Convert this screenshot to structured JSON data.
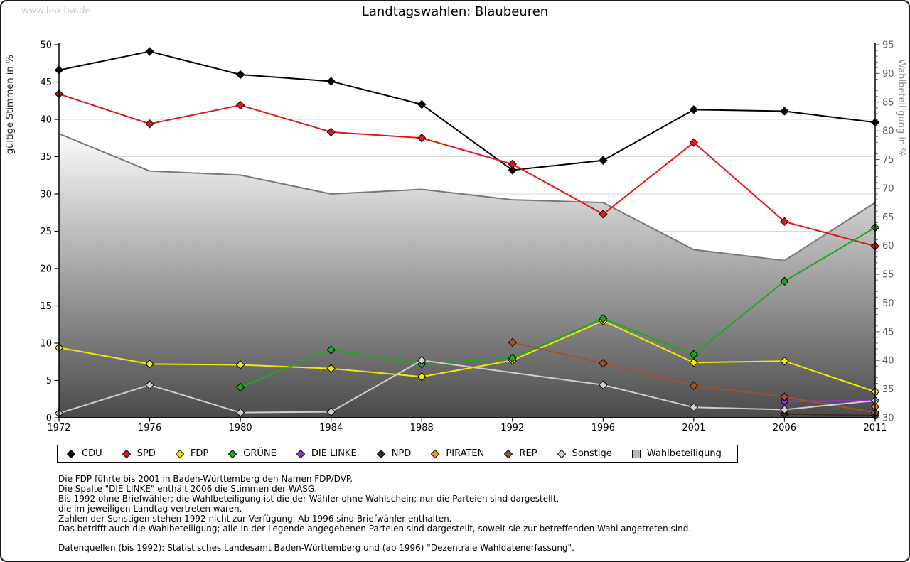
{
  "page": {
    "watermark": "www.leo-bw.de"
  },
  "chart_data": {
    "type": "line",
    "title": "Landtagswahlen: Blaubeuren",
    "x_categories": [
      "1972",
      "1976",
      "1980",
      "1984",
      "1988",
      "1992",
      "1996",
      "2001",
      "2006",
      "2011"
    ],
    "y_left": {
      "label": "gültige Stimmen in %",
      "min": 0,
      "max": 50,
      "step": 5
    },
    "y_right": {
      "label": "Wahlbeteiligung in %",
      "min": 30,
      "max": 95,
      "step": 5
    },
    "grid": "horizontal",
    "legend_position": "bottom",
    "series": [
      {
        "name": "CDU",
        "color": "#000000",
        "axis": "left",
        "values": [
          46.6,
          49.1,
          46.0,
          45.1,
          42.0,
          33.2,
          34.5,
          41.3,
          41.1,
          39.6
        ]
      },
      {
        "name": "SPD",
        "color": "#e01818",
        "axis": "left",
        "values": [
          43.4,
          39.4,
          41.9,
          38.3,
          37.5,
          34.0,
          27.3,
          36.9,
          26.3,
          23.0
        ]
      },
      {
        "name": "FDP",
        "color": "#f2ea00",
        "axis": "left",
        "values": [
          9.4,
          7.2,
          7.1,
          6.6,
          5.5,
          7.7,
          13.0,
          7.4,
          7.6,
          3.5
        ]
      },
      {
        "name": "GRÜNE",
        "color": "#22a522",
        "axis": "left",
        "values": [
          null,
          null,
          4.1,
          9.1,
          7.2,
          8.0,
          13.3,
          8.5,
          18.3,
          25.5
        ]
      },
      {
        "name": "DIE LINKE",
        "color": "#9b30d0",
        "axis": "left",
        "values": [
          null,
          null,
          null,
          null,
          null,
          null,
          null,
          null,
          2.2,
          2.3
        ]
      },
      {
        "name": "NPD",
        "color": "#40291c",
        "axis": "left",
        "values": [
          null,
          null,
          null,
          null,
          null,
          null,
          null,
          null,
          0.5,
          0.3
        ]
      },
      {
        "name": "PIRATEN",
        "color": "#ef9420",
        "axis": "left",
        "values": [
          null,
          null,
          null,
          null,
          null,
          null,
          null,
          null,
          null,
          1.5
        ]
      },
      {
        "name": "REP",
        "color": "#a0522d",
        "axis": "left",
        "values": [
          null,
          null,
          null,
          null,
          null,
          10.1,
          7.3,
          4.3,
          2.8,
          0.7
        ]
      },
      {
        "name": "Sonstige",
        "color": "#cfcfcf",
        "axis": "left",
        "values": [
          0.6,
          4.4,
          0.7,
          0.8,
          7.7,
          null,
          4.4,
          1.4,
          1.1,
          2.3
        ]
      }
    ],
    "turnout_area": {
      "name": "Wahlbeteiligung",
      "axis": "right",
      "stroke_color": "#787878",
      "fill_top": "#fbfbfb",
      "fill_bottom": "#4a4a4a",
      "values": [
        79.5,
        73.0,
        72.3,
        69.0,
        69.8,
        68.0,
        67.5,
        59.3,
        57.4,
        67.5
      ]
    }
  },
  "notes": {
    "lines": [
      "Die FDP führte bis 2001 in Baden-Württemberg den Namen FDP/DVP.",
      "Die Spalte \"DIE LINKE\" enthält 2006 die Stimmen der WASG.",
      "Bis 1992 ohne Briefwähler; die Wahlbeteiligung ist die der Wähler ohne Wahlschein; nur die Parteien sind dargestellt,",
      "die im jeweiligen Landtag vertreten waren.",
      "Zahlen der Sonstigen stehen 1992 nicht zur Verfügung. Ab 1996 sind Briefwähler enthalten.",
      "Das betrifft auch die Wahlbeteiligung; alle in der Legende angegebenen Parteien sind dargestellt, soweit sie zur betreffenden Wahl angetreten sind.",
      "",
      "Datenquellen (bis 1992): Statistisches Landesamt Baden-Württemberg und (ab 1996) \"Dezentrale Wahldatenerfassung\"."
    ]
  }
}
